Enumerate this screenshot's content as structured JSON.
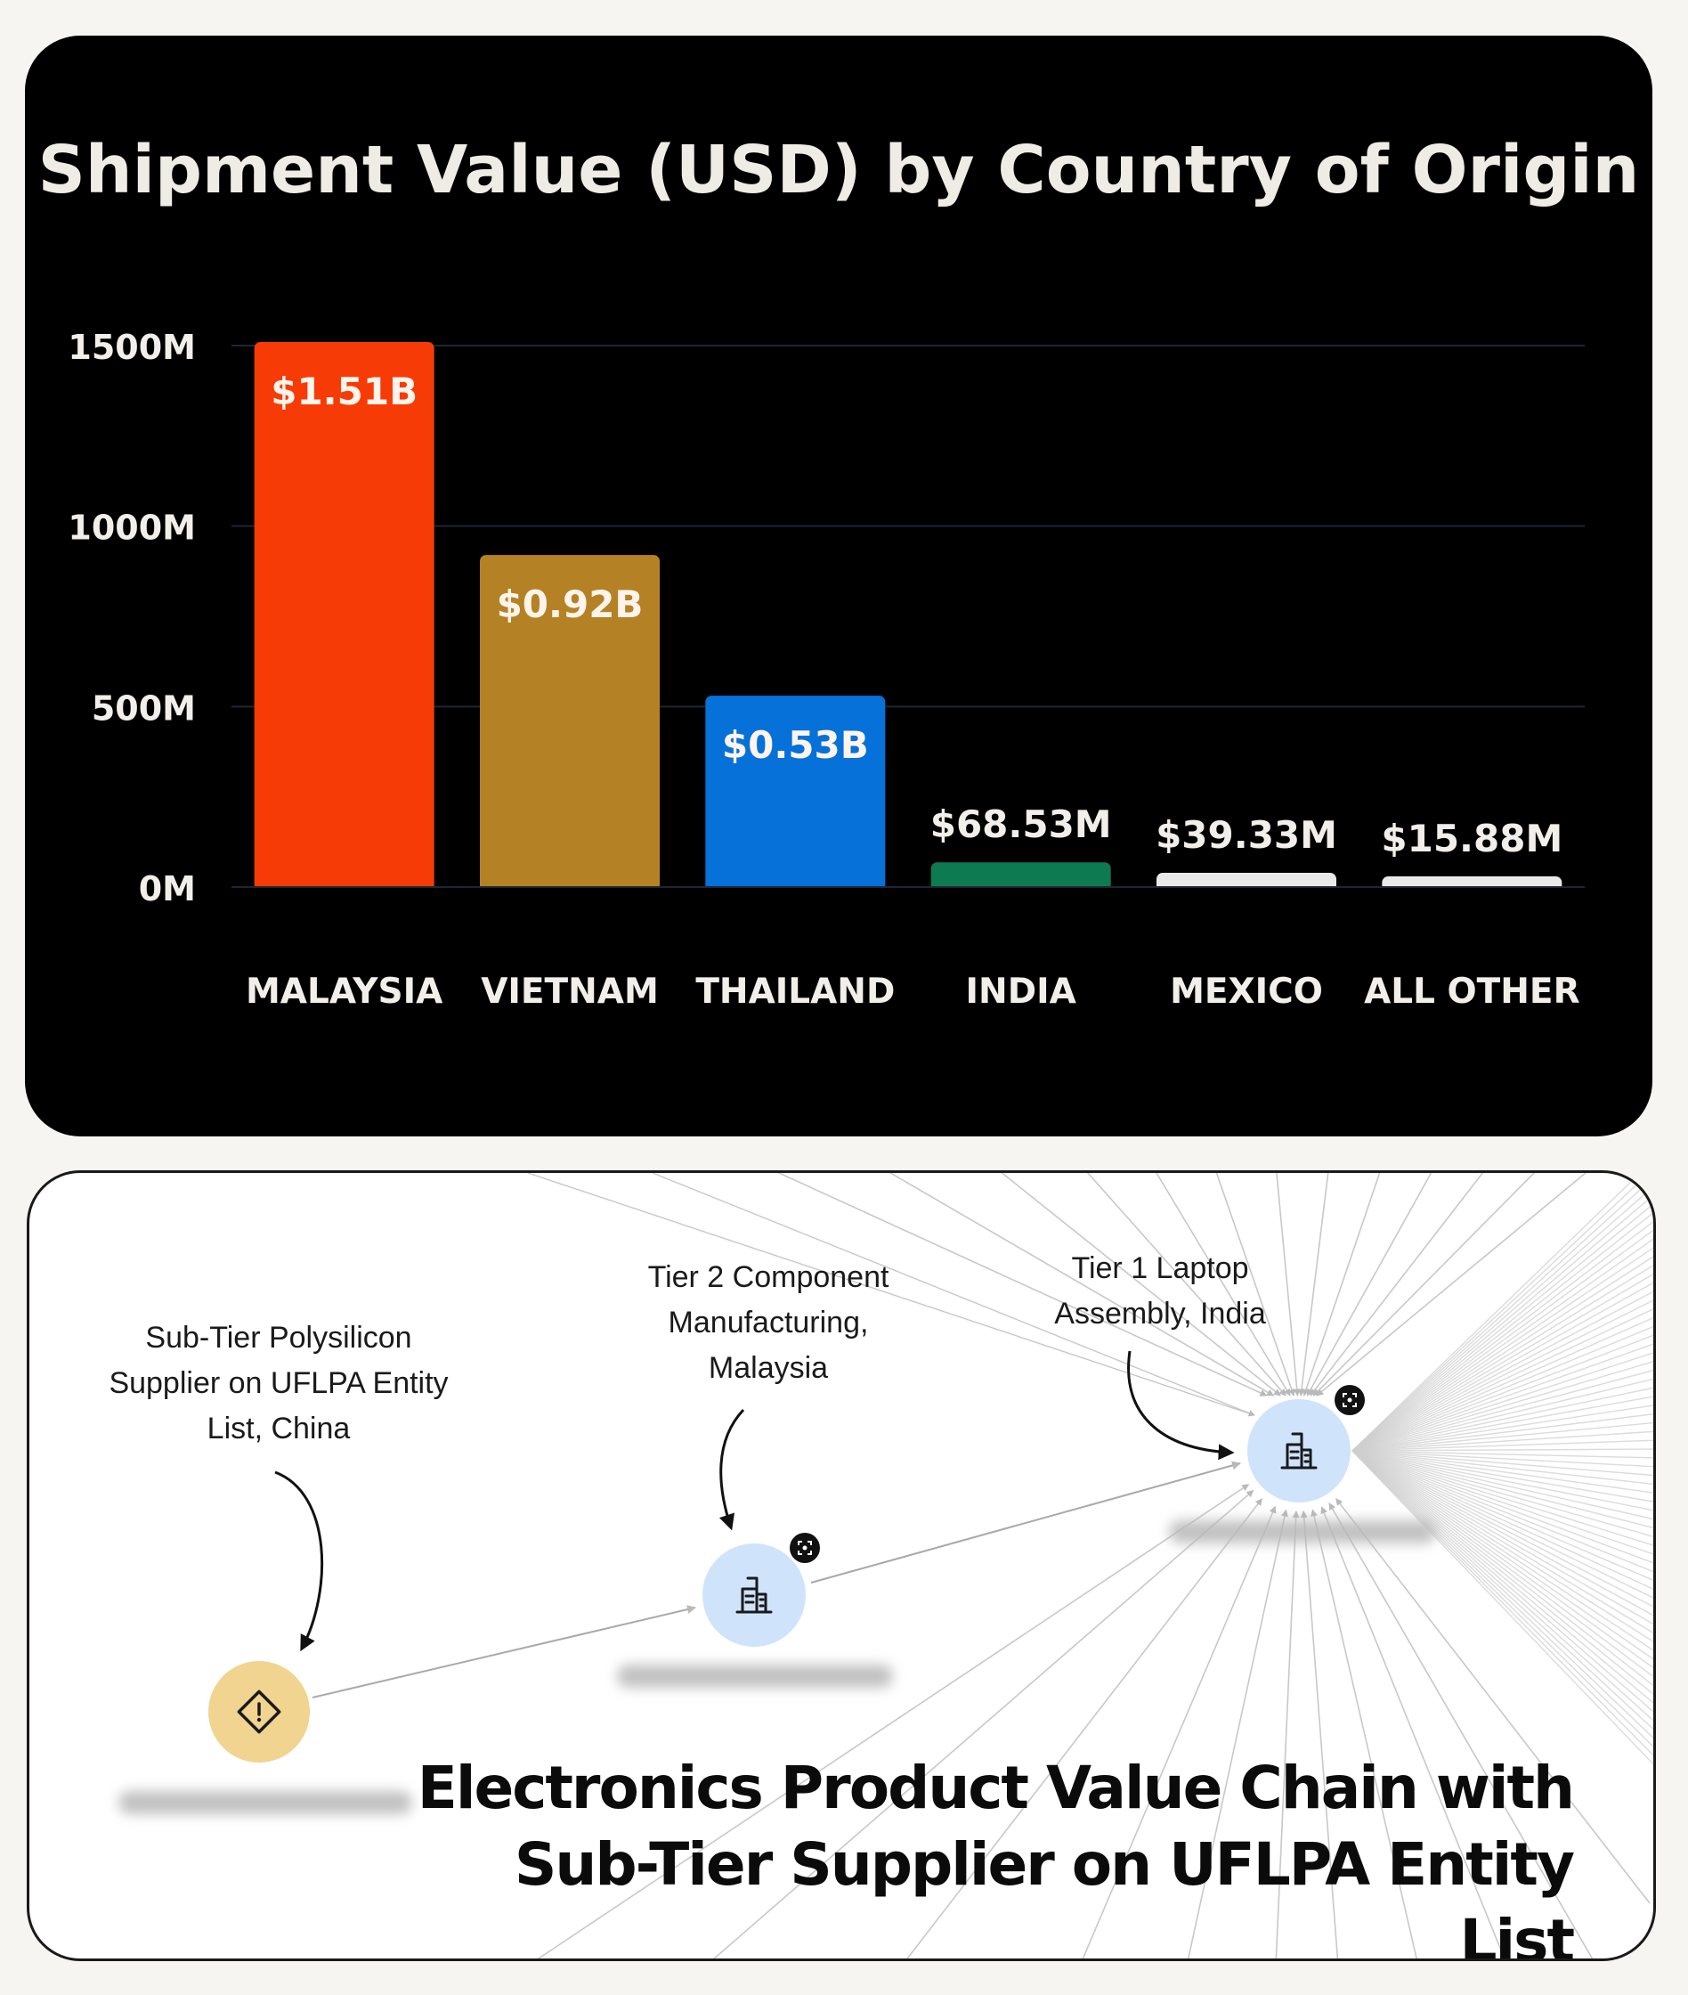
{
  "chart_data": {
    "type": "bar",
    "title": "Shipment Value (USD) by Country of Origin",
    "categories": [
      "MALAYSIA",
      "VIETNAM",
      "THAILAND",
      "INDIA",
      "MEXICO",
      "ALL OTHER"
    ],
    "values": [
      1510,
      920,
      530,
      68.53,
      39.33,
      15.88
    ],
    "value_labels": [
      "$1.51B",
      "$0.92B",
      "$0.53B",
      "$68.53M",
      "$39.33M",
      "$15.88M"
    ],
    "bar_colors": [
      "#f73b06",
      "#b58125",
      "#0671d8",
      "#0e7a52",
      "#e9e9e9",
      "#e9e9e9"
    ],
    "y_ticks": [
      0,
      500,
      1000,
      1500
    ],
    "y_tick_labels": [
      "0M",
      "500M",
      "1000M",
      "1500M"
    ],
    "ylim": [
      0,
      1500
    ],
    "unit": "M",
    "grid": true,
    "background": "#000000"
  },
  "network": {
    "title": "Electronics Product Value Chain with\nSub-Tier Supplier on UFLPA Entity List",
    "callouts": {
      "sub_tier": "Sub-Tier Polysilicon\nSupplier on UFLPA Entity\nList, China",
      "tier2": "Tier 2 Component\nManufacturing,\nMalaysia",
      "tier1": "Tier 1 Laptop\nAssembly, India"
    },
    "node_icons": {
      "sub_tier": "warning-diamond-icon",
      "tier2": "building-icon",
      "tier1": "building-icon",
      "badge": "expand-icon"
    },
    "colors": {
      "facility_node": "#cfe4fb",
      "risk_node": "#f0d48f",
      "edges": "#c8c8c8"
    }
  }
}
